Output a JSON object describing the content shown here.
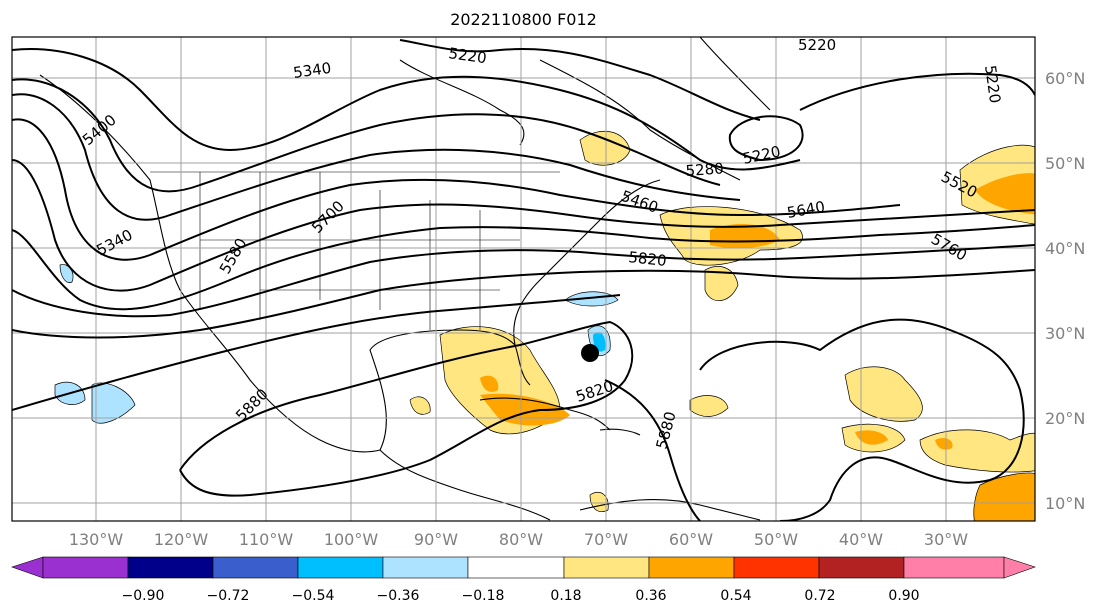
{
  "title": "2022110800 F012",
  "map": {
    "lon_ticks": [
      "130°W",
      "120°W",
      "110°W",
      "100°W",
      "90°W",
      "80°W",
      "70°W",
      "60°W",
      "50°W",
      "40°W",
      "30°W"
    ],
    "lat_ticks": [
      "60°N",
      "50°N",
      "40°N",
      "30°N",
      "20°N",
      "10°N"
    ],
    "contour_labels": [
      "5220",
      "5220",
      "5220",
      "5340",
      "5340",
      "5400",
      "5460",
      "5520",
      "5580",
      "5640",
      "5700",
      "5760",
      "5820",
      "5820",
      "5880",
      "5880",
      "5280",
      "5220"
    ],
    "storm_marker": "storm-center"
  },
  "colorbar": {
    "ticks": [
      "−0.90",
      "−0.72",
      "−0.54",
      "−0.36",
      "−0.18",
      "0.18",
      "0.36",
      "0.54",
      "0.72",
      "0.90"
    ],
    "colors": [
      "#9b30d0",
      "#00008b",
      "#3a5fcd",
      "#00bfff",
      "#aee3ff",
      "#ffffff",
      "#ffe680",
      "#ffa500",
      "#ff3300",
      "#b22222",
      "#ff7fa8"
    ]
  }
}
